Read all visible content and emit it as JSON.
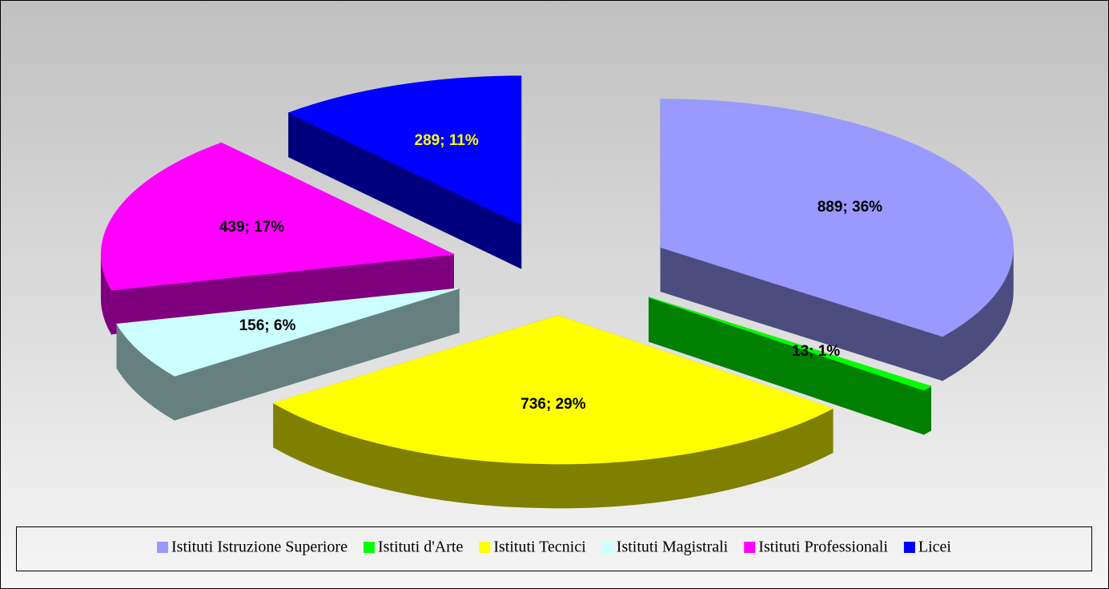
{
  "chart_data": {
    "type": "pie3d",
    "categories": [
      "Istituti Istruzione Superiore",
      "Istituti d'Arte",
      "Istituti Tecnici",
      "Istituti Magistrali",
      "Istituti Professionali",
      "Licei"
    ],
    "values": [
      889,
      13,
      736,
      156,
      439,
      289
    ],
    "value_labels": [
      "889; 36%",
      "13; 1%",
      "736; 29%",
      "156; 6%",
      "439; 17%",
      "289; 11%"
    ],
    "colors": [
      "#9999ff",
      "#00ff00",
      "#ffff00",
      "#ccffff",
      "#ff00ff",
      "#0000ff"
    ],
    "label_colors": [
      "#000000",
      "#000000",
      "#000000",
      "#000000",
      "#000000",
      "#ffff00"
    ],
    "legend": "bottom"
  }
}
